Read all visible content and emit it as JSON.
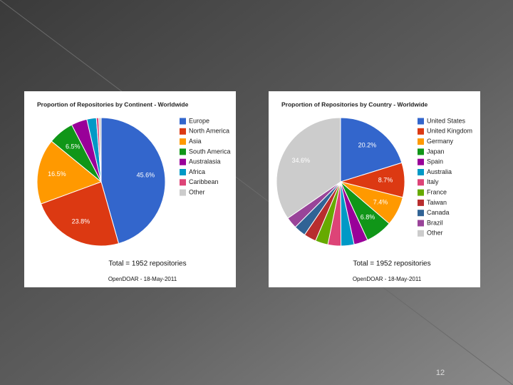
{
  "slide_number": "12",
  "chart_data": [
    {
      "type": "pie",
      "title": "Proportion of Repositories by Continent - Worldwide",
      "categories": [
        "Europe",
        "North America",
        "Asia",
        "South America",
        "Australasia",
        "Africa",
        "Caribbean",
        "Other"
      ],
      "values": [
        45.6,
        23.8,
        16.5,
        6.5,
        4.0,
        2.4,
        0.6,
        0.6
      ],
      "value_labels": [
        "45.6%",
        "23.8%",
        "16.5%",
        "6.5%",
        null,
        null,
        null,
        null
      ],
      "colors": [
        "#3366cc",
        "#dc3912",
        "#ff9900",
        "#109618",
        "#990099",
        "#0099c6",
        "#dd4477",
        "#cccccc"
      ],
      "total": "Total = 1952 repositories",
      "source": "OpenDOAR - 18-May-2011"
    },
    {
      "type": "pie",
      "title": "Proportion of Repositories by Country - Worldwide",
      "categories": [
        "United States",
        "United Kingdom",
        "Germany",
        "Japan",
        "Spain",
        "Australia",
        "Italy",
        "France",
        "Taiwan",
        "Canada",
        "Brazil",
        "Other"
      ],
      "values": [
        20.2,
        8.7,
        7.4,
        6.8,
        3.5,
        3.3,
        3.3,
        3.2,
        3.1,
        3.0,
        2.9,
        34.6
      ],
      "value_labels": [
        "20.2%",
        "8.7%",
        "7.4%",
        "6.8%",
        null,
        null,
        null,
        null,
        null,
        null,
        null,
        "34.6%"
      ],
      "colors": [
        "#3366cc",
        "#dc3912",
        "#ff9900",
        "#109618",
        "#990099",
        "#0099c6",
        "#dd4477",
        "#66aa00",
        "#b82e2e",
        "#316395",
        "#994499",
        "#cccccc"
      ],
      "total": "Total = 1952 repositories",
      "source": "OpenDOAR - 18-May-2011"
    }
  ]
}
